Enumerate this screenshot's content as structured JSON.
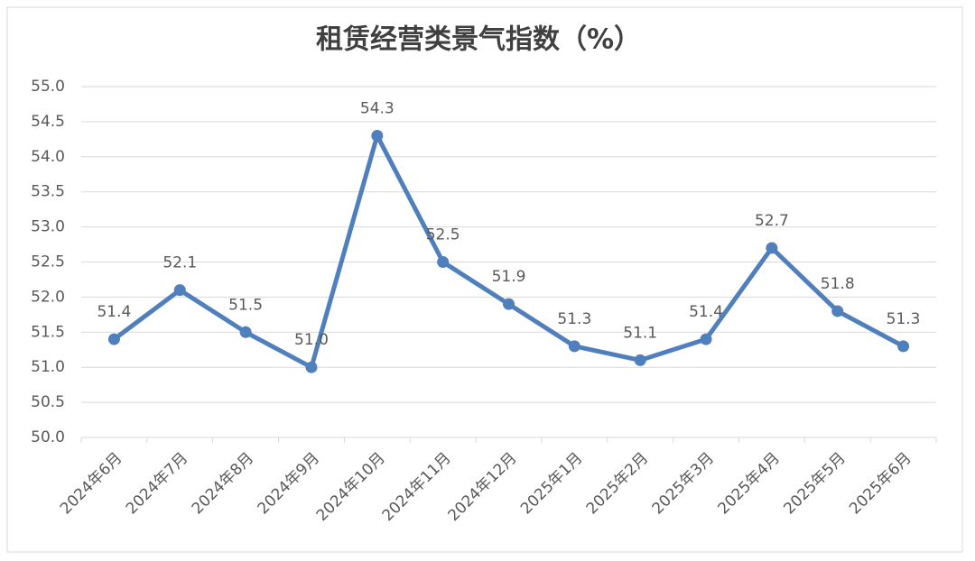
{
  "chart_data": {
    "type": "line",
    "title": "租赁经营类景气指数（%）",
    "categories": [
      "2024年6月",
      "2024年7月",
      "2024年8月",
      "2024年9月",
      "2024年10月",
      "2024年11月",
      "2024年12月",
      "2025年1月",
      "2025年2月",
      "2025年3月",
      "2025年4月",
      "2025年5月",
      "2025年6月"
    ],
    "values": [
      51.4,
      52.1,
      51.5,
      51.0,
      54.3,
      52.5,
      51.9,
      51.3,
      51.1,
      51.4,
      52.7,
      51.8,
      51.3
    ],
    "value_labels": [
      "51.4",
      "52.1",
      "51.5",
      "51.0",
      "54.3",
      "52.5",
      "51.9",
      "51.3",
      "51.1",
      "51.4",
      "52.7",
      "51.8",
      "51.3"
    ],
    "color": "#4f7fbc",
    "ylim": [
      50,
      55
    ],
    "yticks": [
      {
        "value": 50,
        "label": "50.0"
      },
      50.5,
      {
        "value": 51,
        "label": "51.0"
      },
      51.5,
      {
        "value": 52,
        "label": "52.0"
      },
      52.5,
      {
        "value": 53,
        "label": "53.0"
      },
      53.5,
      {
        "value": 54,
        "label": "54.0"
      },
      54.5,
      {
        "value": 55,
        "label": "55.0"
      }
    ],
    "grid": true
  }
}
